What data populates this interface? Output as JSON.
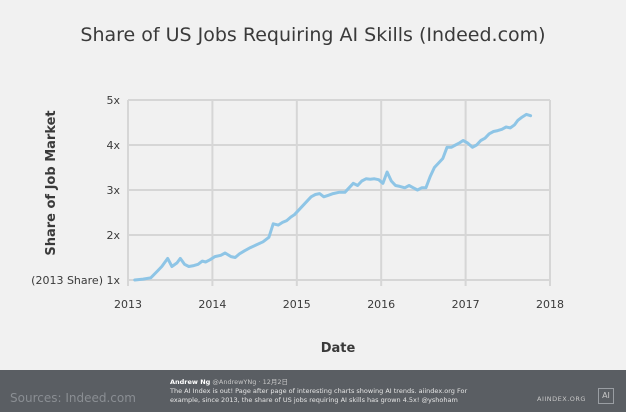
{
  "chart_data": {
    "type": "line",
    "title": "Share of US Jobs Requiring AI Skills (Indeed.com)",
    "xlabel": "Date",
    "ylabel": "Share of Job Market",
    "xlim": [
      2013,
      2018
    ],
    "ylim": [
      1,
      5
    ],
    "x_ticks": [
      2013,
      2014,
      2015,
      2016,
      2017,
      2018
    ],
    "y_ticks": [
      1,
      2,
      3,
      4,
      5
    ],
    "y_tick_labels": [
      "(2013 Share) 1x",
      "2x",
      "3x",
      "4x",
      "5x"
    ],
    "grid": "both",
    "legend": "none",
    "line_color": "#8ec5e6",
    "series": [
      {
        "x": [
          2013.08,
          2013.18,
          2013.27,
          2013.35,
          2013.4,
          2013.47,
          2013.52,
          2013.58,
          2013.62,
          2013.67,
          2013.72,
          2013.78,
          2013.83,
          2013.88,
          2013.92,
          2013.97,
          2014.03,
          2014.1,
          2014.15,
          2014.22,
          2014.27,
          2014.32,
          2014.38,
          2014.45,
          2014.52,
          2014.6,
          2014.67,
          2014.72,
          2014.78,
          2014.83,
          2014.88,
          2014.93,
          2014.97,
          2015.02,
          2015.07,
          2015.12,
          2015.17,
          2015.22,
          2015.27,
          2015.32,
          2015.37,
          2015.43,
          2015.5,
          2015.57,
          2015.62,
          2015.67,
          2015.72,
          2015.77,
          2015.82,
          2015.87,
          2015.92,
          2015.97,
          2016.02,
          2016.07,
          2016.12,
          2016.17,
          2016.22,
          2016.28,
          2016.33,
          2016.38,
          2016.43,
          2016.48,
          2016.53,
          2016.58,
          2016.63,
          2016.68,
          2016.73,
          2016.78,
          2016.83,
          2016.88,
          2016.93,
          2016.97,
          2017.02,
          2017.08,
          2017.13,
          2017.18,
          2017.23,
          2017.28,
          2017.33,
          2017.38,
          2017.43,
          2017.48,
          2017.53,
          2017.58,
          2017.62,
          2017.67,
          2017.72,
          2017.77
        ],
        "y": [
          1.0,
          1.02,
          1.05,
          1.2,
          1.3,
          1.48,
          1.3,
          1.38,
          1.48,
          1.35,
          1.3,
          1.32,
          1.35,
          1.42,
          1.4,
          1.45,
          1.52,
          1.55,
          1.6,
          1.52,
          1.5,
          1.58,
          1.65,
          1.72,
          1.78,
          1.85,
          1.95,
          2.25,
          2.22,
          2.28,
          2.32,
          2.4,
          2.45,
          2.55,
          2.65,
          2.75,
          2.85,
          2.9,
          2.92,
          2.85,
          2.88,
          2.92,
          2.95,
          2.95,
          3.05,
          3.15,
          3.1,
          3.2,
          3.25,
          3.24,
          3.25,
          3.23,
          3.15,
          3.4,
          3.2,
          3.1,
          3.08,
          3.05,
          3.1,
          3.05,
          3.0,
          3.05,
          3.05,
          3.3,
          3.5,
          3.6,
          3.7,
          3.95,
          3.95,
          4.0,
          4.05,
          4.1,
          4.05,
          3.95,
          4.0,
          4.1,
          4.15,
          4.25,
          4.3,
          4.32,
          4.35,
          4.4,
          4.38,
          4.45,
          4.55,
          4.62,
          4.68,
          4.65
        ]
      }
    ]
  },
  "footer": {
    "source": "Sources: Indeed.com",
    "tweet_author": "Andrew Ng",
    "tweet_handle": "@AndrewYNg · 12月2日",
    "tweet_text": "The AI Index is out! Page after page of interesting charts showing AI trends. aiindex.org For example, since 2013, the share of US jobs requiring AI skills has grown 4.5x! @yshoham",
    "brand": "AIINDEX.ORG",
    "brand_mark": "AI"
  }
}
